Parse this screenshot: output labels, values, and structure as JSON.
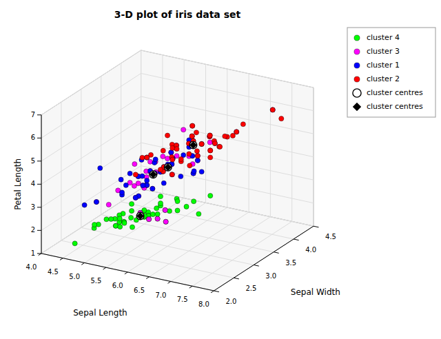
{
  "chart_data": {
    "type": "scatter3d",
    "title": "3-D plot of iris data set",
    "xlabel": "Sepal Length",
    "ylabel": "Sepal Width",
    "zlabel": "Petal Length",
    "xlim": [
      4,
      8
    ],
    "ylim": [
      2,
      4.5
    ],
    "zlim": [
      1,
      7
    ],
    "xticks": [
      {
        "value": 4,
        "label": "4.0"
      },
      4.5,
      {
        "value": 5,
        "label": "5.0"
      },
      5.5,
      {
        "value": 6,
        "label": "6.0"
      },
      6.5,
      {
        "value": 7,
        "label": "7.0"
      },
      7.5,
      {
        "value": 8,
        "label": "8.0"
      }
    ],
    "yticks": [
      {
        "value": 2,
        "label": "2.0"
      },
      2.5,
      {
        "value": 3,
        "label": "3.0"
      },
      3.5,
      {
        "value": 4,
        "label": "4.0"
      },
      4.5
    ],
    "zticks": [
      1,
      2,
      3,
      4,
      5,
      6,
      7
    ],
    "grid": true,
    "legend": "upper right",
    "series": [
      {
        "name": "cluster 4",
        "color": "#00ff00",
        "marker": "circle",
        "x": [
          5.1,
          4.9,
          4.7,
          4.6,
          5.0,
          5.4,
          4.6,
          5.0,
          4.4,
          4.9,
          5.4,
          4.8,
          4.8,
          4.3,
          5.8,
          5.7,
          5.4,
          5.1,
          5.7,
          5.1,
          5.4,
          5.1,
          4.6,
          5.1,
          4.8,
          5.0,
          5.0,
          5.2,
          5.2,
          4.7,
          4.8,
          5.4,
          5.2,
          5.5,
          4.9,
          5.0,
          5.5,
          4.9,
          4.4,
          5.1,
          5.0,
          4.5,
          4.4,
          5.0,
          5.1,
          4.8,
          5.1,
          4.6,
          5.3,
          5.0
        ],
        "y": [
          3.5,
          3.0,
          3.2,
          3.1,
          3.6,
          3.9,
          3.4,
          3.4,
          2.9,
          3.1,
          3.7,
          3.4,
          3.0,
          3.0,
          4.0,
          4.4,
          3.9,
          3.5,
          3.8,
          3.8,
          3.4,
          3.7,
          3.6,
          3.3,
          3.4,
          3.0,
          3.4,
          3.5,
          3.4,
          3.2,
          3.1,
          3.4,
          4.1,
          4.2,
          3.1,
          3.2,
          3.5,
          3.6,
          3.0,
          3.4,
          3.5,
          2.3,
          3.2,
          3.5,
          3.8,
          3.0,
          3.8,
          3.2,
          3.7,
          3.3
        ],
        "z": [
          1.4,
          1.4,
          1.3,
          1.5,
          1.4,
          1.7,
          1.4,
          1.5,
          1.4,
          1.5,
          1.5,
          1.6,
          1.4,
          1.1,
          1.2,
          1.5,
          1.3,
          1.4,
          1.7,
          1.5,
          1.7,
          1.5,
          1.0,
          1.7,
          1.9,
          1.6,
          1.6,
          1.5,
          1.4,
          1.6,
          1.6,
          1.5,
          1.5,
          1.4,
          1.5,
          1.2,
          1.3,
          1.4,
          1.3,
          1.5,
          1.3,
          1.3,
          1.3,
          1.6,
          1.9,
          1.4,
          1.6,
          1.4,
          1.5,
          1.4
        ]
      },
      {
        "name": "cluster 3",
        "color": "magenta",
        "marker": "circle",
        "x": [
          6.0,
          5.1,
          5.3,
          5.6,
          5.5,
          6.1,
          5.8,
          5.0,
          6.4,
          5.2,
          5.6,
          5.9,
          6.7,
          5.5,
          5.8,
          6.0,
          5.4,
          6.0,
          6.7,
          6.3,
          5.6,
          5.5,
          5.8,
          6.2,
          5.6,
          5.9,
          6.3,
          6.1,
          6.1,
          6.3,
          6.4,
          6.6,
          5.6,
          6.1,
          5.8,
          6.3,
          6.5,
          6.8,
          6.7,
          5.7,
          6.0,
          5.0,
          5.6,
          5.7,
          5.7,
          6.2,
          5.1,
          5.7,
          6.4,
          5.8
        ],
        "y": [
          2.2,
          2.5,
          3.7,
          3.0,
          2.6,
          3.0,
          2.6,
          2.3,
          3.2,
          3.4,
          2.6,
          3.2,
          3.0,
          2.3,
          2.7,
          2.7,
          3.4,
          3.4,
          3.0,
          3.3,
          3.0,
          3.5,
          3.1,
          2.2,
          2.7,
          3.2,
          2.5,
          2.8,
          2.6,
          2.7,
          2.7,
          3.0,
          2.7,
          3.0,
          2.7,
          2.3,
          3.0,
          3.2,
          3.3,
          2.5,
          3.0,
          3.4,
          2.9,
          2.8,
          2.6,
          3.4,
          3.3,
          2.9,
          2.8,
          2.7
        ],
        "z": [
          4.0,
          3.0,
          1.5,
          4.5,
          4.0,
          4.6,
          4.0,
          3.3,
          4.5,
          1.4,
          3.9,
          4.8,
          5.0,
          4.0,
          3.9,
          5.0,
          1.5,
          5.6,
          5.2,
          4.7,
          4.1,
          1.3,
          4.7,
          4.5,
          3.9,
          4.8,
          4.9,
          4.7,
          4.7,
          4.9,
          5.3,
          4.4,
          4.2,
          4.6,
          3.9,
          4.4,
          5.1,
          5.6,
          5.7,
          5.0,
          4.8,
          1.6,
          4.2,
          4.1,
          3.5,
          5.4,
          1.7,
          4.2,
          5.3,
          5.1
        ]
      },
      {
        "name": "cluster 1",
        "color": "blue",
        "marker": "circle",
        "x": [
          6.3,
          5.8,
          7.1,
          6.3,
          6.5,
          7.6,
          4.9,
          6.6,
          5.2,
          5.0,
          5.9,
          6.0,
          6.1,
          5.6,
          6.7,
          5.6,
          5.8,
          6.2,
          5.6,
          5.9,
          6.1,
          6.3,
          6.1,
          6.4,
          6.6,
          6.8,
          6.7,
          6.0,
          5.7,
          5.5,
          5.5,
          5.8,
          6.0,
          5.4,
          6.0,
          6.7,
          6.3,
          5.6,
          5.5,
          5.5,
          6.1,
          5.8,
          5.0,
          6.4,
          5.7,
          5.8,
          6.4,
          6.5,
          7.7,
          6.3
        ],
        "y": [
          3.3,
          2.7,
          3.0,
          2.9,
          3.0,
          3.0,
          2.5,
          3.0,
          2.7,
          2.0,
          3.0,
          2.2,
          2.9,
          2.9,
          3.1,
          2.7,
          2.9,
          2.9,
          2.8,
          3.2,
          2.8,
          2.5,
          2.8,
          2.9,
          3.0,
          2.8,
          3.0,
          2.9,
          2.6,
          2.4,
          2.4,
          2.7,
          2.7,
          3.0,
          3.4,
          3.1,
          2.3,
          3.0,
          2.5,
          2.6,
          3.0,
          2.6,
          2.3,
          2.7,
          3.0,
          2.7,
          3.2,
          3.0,
          3.8,
          2.7
        ],
        "z": [
          4.7,
          4.1,
          5.9,
          5.6,
          5.8,
          6.6,
          4.5,
          5.8,
          3.9,
          3.5,
          4.2,
          4.0,
          4.7,
          3.6,
          4.4,
          4.2,
          4.2,
          4.3,
          4.1,
          4.8,
          4.7,
          4.9,
          4.0,
          4.3,
          4.4,
          4.8,
          5.0,
          4.5,
          3.5,
          3.8,
          3.7,
          3.9,
          5.1,
          4.5,
          4.5,
          5.6,
          4.4,
          4.1,
          4.0,
          4.4,
          4.6,
          4.0,
          3.3,
          5.3,
          4.5,
          5.1,
          5.3,
          5.5,
          6.7,
          4.9
        ]
      },
      {
        "name": "cluster 2",
        "color": "red",
        "marker": "circle",
        "x": [
          6.3,
          5.8,
          7.1,
          6.3,
          6.5,
          7.6,
          6.7,
          6.6,
          6.8,
          7.7,
          6.0,
          6.9,
          5.6,
          7.7,
          6.3,
          6.7,
          7.2,
          6.2,
          6.1,
          6.4,
          7.2,
          7.4,
          7.9,
          6.4,
          6.3,
          6.1,
          7.7,
          6.4,
          6.0,
          6.9,
          6.7,
          6.9,
          5.8,
          6.8,
          6.7,
          6.7,
          6.3,
          6.5,
          6.2,
          5.9,
          7.2,
          6.5,
          6.4,
          6.5,
          6.3,
          6.9,
          6.2,
          5.9,
          6.3,
          6.2
        ],
        "y": [
          2.8,
          2.8,
          3.0,
          2.8,
          2.8,
          3.0,
          2.8,
          3.0,
          3.2,
          2.8,
          3.0,
          3.1,
          2.8,
          3.8,
          3.4,
          3.1,
          3.6,
          2.9,
          3.0,
          3.2,
          3.0,
          2.8,
          3.8,
          2.8,
          3.3,
          2.8,
          2.6,
          3.2,
          2.2,
          3.2,
          3.3,
          3.1,
          2.7,
          3.2,
          3.1,
          3.0,
          2.5,
          3.2,
          3.4,
          3.0,
          3.2,
          2.8,
          3.1,
          3.0,
          3.3,
          3.1,
          3.4,
          3.0,
          2.9,
          2.9
        ],
        "z": [
          5.1,
          5.1,
          5.9,
          5.6,
          5.1,
          6.6,
          5.0,
          5.8,
          5.9,
          6.7,
          5.8,
          5.4,
          4.9,
          6.7,
          5.6,
          5.6,
          6.1,
          5.6,
          4.9,
          5.3,
          5.8,
          6.1,
          6.4,
          5.6,
          6.0,
          4.7,
          6.9,
          5.3,
          5.0,
          5.7,
          5.7,
          5.1,
          5.1,
          5.9,
          5.6,
          5.2,
          5.0,
          5.1,
          5.4,
          4.2,
          6.0,
          5.2,
          5.5,
          5.2,
          6.0,
          5.4,
          5.4,
          5.1,
          5.6,
          4.3
        ]
      },
      {
        "name": "cluster centres",
        "color": "white",
        "marker": "circle",
        "x": [
          6.15,
          6.55,
          5.9,
          5.0
        ],
        "y": [
          2.85,
          3.05,
          2.75,
          3.4
        ],
        "z": [
          4.65,
          5.55,
          4.35,
          1.46
        ]
      },
      {
        "name": "cluster centres",
        "color": "black",
        "marker": "diamond",
        "x": [
          6.15,
          6.55,
          5.9,
          5.0
        ],
        "y": [
          2.85,
          3.05,
          2.75,
          3.4
        ],
        "z": [
          4.65,
          5.55,
          4.35,
          1.46
        ]
      }
    ]
  }
}
